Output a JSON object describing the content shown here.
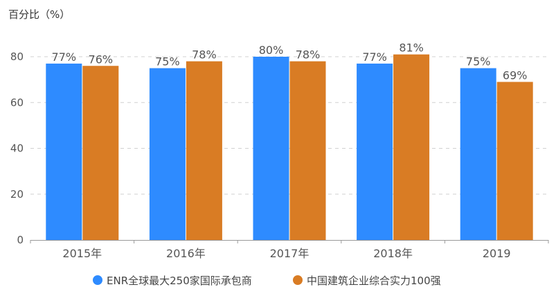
{
  "chart_data": {
    "type": "bar",
    "ylabel": "百分比（%）",
    "categories": [
      "2015年",
      "2016年",
      "2017年",
      "2018年",
      "2019"
    ],
    "series": [
      {
        "name": "ENR全球最大250家国际承包商",
        "color": "#2e8bff",
        "values": [
          77,
          75,
          80,
          77,
          75
        ],
        "labels": [
          "77%",
          "75%",
          "80%",
          "77%",
          "75%"
        ]
      },
      {
        "name": "中国建筑企业综合实力100强",
        "color": "#d97c24",
        "values": [
          76,
          78,
          78,
          81,
          69
        ],
        "labels": [
          "76%",
          "78%",
          "78%",
          "81%",
          "69%"
        ]
      }
    ],
    "yticks": [
      0,
      20,
      40,
      60,
      80
    ],
    "ylim": [
      0,
      80
    ],
    "grid": true,
    "legend": "bottom"
  }
}
